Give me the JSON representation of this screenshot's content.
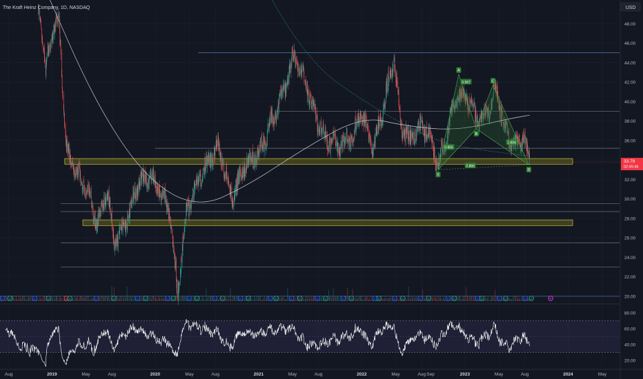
{
  "header": {
    "symbol_label": "The Kraft Heinz Company, 1D, NASDAQ",
    "currency_label": "USD"
  },
  "price_badge": {
    "price": "33.79",
    "countdown": "02:45:46",
    "color": "#f23645"
  },
  "colors": {
    "background": "#131722",
    "up_candle": "#26a69a",
    "down_candle": "#ef5350",
    "ma_line": "#d1d4dc",
    "level_line_blue": "#5b9bd5",
    "level_line_gray": "#8a8f99",
    "zone_fill": "#8f8c1f",
    "harmonic": "#2e7d32",
    "rsi_line": "#ffffff",
    "rsi_band": "#7e57c2"
  },
  "chart_data": [
    {
      "type": "candlestick",
      "title": "The Kraft Heinz Company, 1D, NASDAQ",
      "y_axis": {
        "ticks": [
          "48.00",
          "46.00",
          "44.00",
          "42.00",
          "40.00",
          "38.00",
          "36.00",
          "34.00",
          "32.00",
          "30.00",
          "28.00",
          "26.00",
          "24.00",
          "22.00",
          "20.00"
        ],
        "ylim": [
          19.5,
          50
        ],
        "side": "right"
      },
      "x_axis": {
        "ticks": [
          "Aug",
          "2019",
          "May",
          "Aug",
          "2020",
          "May",
          "Aug",
          "2021",
          "May",
          "Aug",
          "2022",
          "May",
          "Aug",
          "Sep",
          "2023",
          "May",
          "Aug",
          "2024",
          "May"
        ]
      },
      "close_anchors": [
        {
          "date": "2018-07-01",
          "close": 60.0
        },
        {
          "date": "2018-08-10",
          "close": 61.0
        },
        {
          "date": "2018-10-20",
          "close": 54.0
        },
        {
          "date": "2018-11-20",
          "close": 48.5
        },
        {
          "date": "2018-12-10",
          "close": 43.0
        },
        {
          "date": "2018-12-28",
          "close": 46.5
        },
        {
          "date": "2019-01-25",
          "close": 48.3
        },
        {
          "date": "2019-02-21",
          "close": 35.0
        },
        {
          "date": "2019-03-25",
          "close": 33.0
        },
        {
          "date": "2019-05-05",
          "close": 31.0
        },
        {
          "date": "2019-06-10",
          "close": 27.5
        },
        {
          "date": "2019-07-15",
          "close": 31.0
        },
        {
          "date": "2019-08-10",
          "close": 25.5
        },
        {
          "date": "2019-09-20",
          "close": 27.5
        },
        {
          "date": "2019-11-01",
          "close": 31.8
        },
        {
          "date": "2019-12-20",
          "close": 32.2
        },
        {
          "date": "2020-02-20",
          "close": 29.0
        },
        {
          "date": "2020-03-20",
          "close": 20.5
        },
        {
          "date": "2020-04-20",
          "close": 28.5
        },
        {
          "date": "2020-06-10",
          "close": 32.5
        },
        {
          "date": "2020-08-10",
          "close": 35.5
        },
        {
          "date": "2020-10-01",
          "close": 30.0
        },
        {
          "date": "2020-11-10",
          "close": 33.5
        },
        {
          "date": "2020-12-31",
          "close": 34.7
        },
        {
          "date": "2021-02-10",
          "close": 37.5
        },
        {
          "date": "2021-03-25",
          "close": 40.5
        },
        {
          "date": "2021-05-07",
          "close": 44.8
        },
        {
          "date": "2021-06-15",
          "close": 42.0
        },
        {
          "date": "2021-07-20",
          "close": 38.5
        },
        {
          "date": "2021-09-01",
          "close": 36.0
        },
        {
          "date": "2021-10-15",
          "close": 35.5
        },
        {
          "date": "2021-12-01",
          "close": 36.5
        },
        {
          "date": "2021-12-31",
          "close": 39.0
        },
        {
          "date": "2022-02-10",
          "close": 35.0
        },
        {
          "date": "2022-03-15",
          "close": 39.0
        },
        {
          "date": "2022-04-25",
          "close": 44.5
        },
        {
          "date": "2022-05-20",
          "close": 37.5
        },
        {
          "date": "2022-06-20",
          "close": 36.0
        },
        {
          "date": "2022-07-25",
          "close": 37.5
        },
        {
          "date": "2022-08-25",
          "close": 36.8
        },
        {
          "date": "2022-09-28",
          "close": 33.5
        },
        {
          "date": "2022-10-20",
          "close": 35.5
        },
        {
          "date": "2022-11-30",
          "close": 40.5
        },
        {
          "date": "2022-12-30",
          "close": 40.7
        },
        {
          "date": "2023-01-25",
          "close": 39.5
        },
        {
          "date": "2023-02-15",
          "close": 38.0
        },
        {
          "date": "2023-03-25",
          "close": 39.0
        },
        {
          "date": "2023-04-20",
          "close": 41.5
        },
        {
          "date": "2023-05-20",
          "close": 37.5
        },
        {
          "date": "2023-06-20",
          "close": 35.5
        },
        {
          "date": "2023-07-25",
          "close": 36.5
        },
        {
          "date": "2023-08-18",
          "close": 33.8
        }
      ],
      "moving_averages": [
        {
          "name": "",
          "points": [
            [
              "2018-12-01",
              52.0
            ],
            [
              "2019-06-01",
              40.0
            ],
            [
              "2019-12-01",
              32.0
            ],
            [
              "2020-06-01",
              29.0
            ],
            [
              "2020-12-01",
              31.5
            ],
            [
              "2021-06-01",
              35.0
            ],
            [
              "2022-01-01",
              38.5
            ],
            [
              "2022-06-01",
              37.5
            ],
            [
              "2022-12-01",
              37.0
            ],
            [
              "2023-06-01",
              38.2
            ],
            [
              "2023-08-18",
              38.6
            ]
          ]
        },
        {
          "name": "",
          "points": [
            [
              "2020-09-01",
              60.0
            ],
            [
              "2021-06-01",
              44.5
            ],
            [
              "2022-03-01",
              39.0
            ],
            [
              "2022-10-01",
              35.8
            ],
            [
              "2023-03-01",
              35.0
            ],
            [
              "2023-08-18",
              34.4
            ]
          ]
        }
      ],
      "horizontal_levels": [
        {
          "price": 45.0,
          "start": "2020-06-01",
          "color": "blue"
        },
        {
          "price": 39.0,
          "start": "2021-03-01",
          "color": "gray"
        },
        {
          "price": 35.2,
          "start": "2020-01-01",
          "color": "gray"
        },
        {
          "price": 29.5,
          "start": "2019-02-01",
          "color": "gray"
        },
        {
          "price": 28.7,
          "start": "2019-02-01",
          "color": "gray"
        },
        {
          "price": 25.5,
          "start": "2019-02-01",
          "color": "gray"
        },
        {
          "price": 23.0,
          "start": "2019-02-01",
          "color": "gray"
        },
        {
          "price": 20.0,
          "start": "2018-07-01",
          "color": "blue"
        }
      ],
      "zones": [
        {
          "low": 33.7,
          "high": 34.0,
          "start": "2019-02-15"
        },
        {
          "low": 27.4,
          "high": 27.7,
          "start": "2019-04-20"
        }
      ],
      "harmonic_points": [
        {
          "label": "X",
          "date": "2022-09-28",
          "price": 33.0,
          "pos": "below"
        },
        {
          "label": "A",
          "date": "2022-12-10",
          "price": 42.8,
          "pos": "above"
        },
        {
          "label": "B",
          "date": "2023-02-10",
          "price": 37.2,
          "pos": "below"
        },
        {
          "label": "C",
          "date": "2023-04-10",
          "price": 41.7,
          "pos": "above"
        },
        {
          "label": "D",
          "date": "2023-08-15",
          "price": 33.5,
          "pos": "below"
        }
      ],
      "harmonic_ratios": [
        {
          "text": "0.567",
          "date": "2023-01-05",
          "price": 42.0
        },
        {
          "text": "0.856",
          "date": "2022-11-05",
          "price": 35.3
        },
        {
          "text": "0.866",
          "date": "2023-01-20",
          "price": 33.4
        },
        {
          "text": "1.604",
          "date": "2023-06-15",
          "price": 35.8
        }
      ],
      "event_markers": [
        {
          "date": "2018-07-10",
          "kind": "E"
        },
        {
          "date": "2018-08-05",
          "kind": "D"
        },
        {
          "date": "2018-11-01",
          "kind": "E"
        },
        {
          "date": "2018-12-20",
          "kind": "D"
        },
        {
          "date": "2019-02-21",
          "kind": "S"
        },
        {
          "date": "2019-03-05",
          "kind": "D"
        },
        {
          "date": "2019-06-07",
          "kind": "E"
        },
        {
          "date": "2019-08-08",
          "kind": "D"
        },
        {
          "date": "2019-10-31",
          "kind": "E"
        },
        {
          "date": "2019-11-28",
          "kind": "D"
        },
        {
          "date": "2020-02-13",
          "kind": "E"
        },
        {
          "date": "2020-03-05",
          "kind": "D"
        },
        {
          "date": "2020-04-30",
          "kind": "E"
        },
        {
          "date": "2020-05-28",
          "kind": "D"
        },
        {
          "date": "2020-07-30",
          "kind": "E"
        },
        {
          "date": "2020-08-27",
          "kind": "D"
        },
        {
          "date": "2020-10-29",
          "kind": "E"
        },
        {
          "date": "2020-11-26",
          "kind": "D"
        },
        {
          "date": "2021-02-11",
          "kind": "E"
        },
        {
          "date": "2021-03-04",
          "kind": "D"
        },
        {
          "date": "2021-04-28",
          "kind": "E"
        },
        {
          "date": "2021-05-27",
          "kind": "D"
        },
        {
          "date": "2021-07-28",
          "kind": "E"
        },
        {
          "date": "2021-08-26",
          "kind": "D"
        },
        {
          "date": "2021-10-27",
          "kind": "E"
        },
        {
          "date": "2021-11-25",
          "kind": "D"
        },
        {
          "date": "2022-02-16",
          "kind": "E"
        },
        {
          "date": "2022-03-03",
          "kind": "D"
        },
        {
          "date": "2022-04-27",
          "kind": "E"
        },
        {
          "date": "2022-05-26",
          "kind": "D"
        },
        {
          "date": "2022-07-27",
          "kind": "E"
        },
        {
          "date": "2022-08-25",
          "kind": "D"
        },
        {
          "date": "2022-11-02",
          "kind": "E"
        },
        {
          "date": "2022-11-24",
          "kind": "D"
        },
        {
          "date": "2023-02-15",
          "kind": "E"
        },
        {
          "date": "2023-03-02",
          "kind": "D"
        },
        {
          "date": "2023-05-03",
          "kind": "E"
        },
        {
          "date": "2023-05-25",
          "kind": "D"
        },
        {
          "date": "2023-08-02",
          "kind": "E"
        },
        {
          "date": "2023-08-24",
          "kind": "D"
        },
        {
          "date": "2023-10-31",
          "kind": "P"
        }
      ]
    },
    {
      "type": "line",
      "title": "",
      "y_axis": {
        "ticks": [
          "80.00",
          "60.00",
          "40.00",
          "20.00"
        ],
        "ylim": [
          12,
          88
        ],
        "side": "right"
      },
      "bands": {
        "upper": 70,
        "lower": 30
      },
      "series": [
        {
          "values_source": "computed from close series"
        }
      ]
    }
  ],
  "timeline": {
    "start": "2018-07-01",
    "end": "2024-07-01"
  }
}
